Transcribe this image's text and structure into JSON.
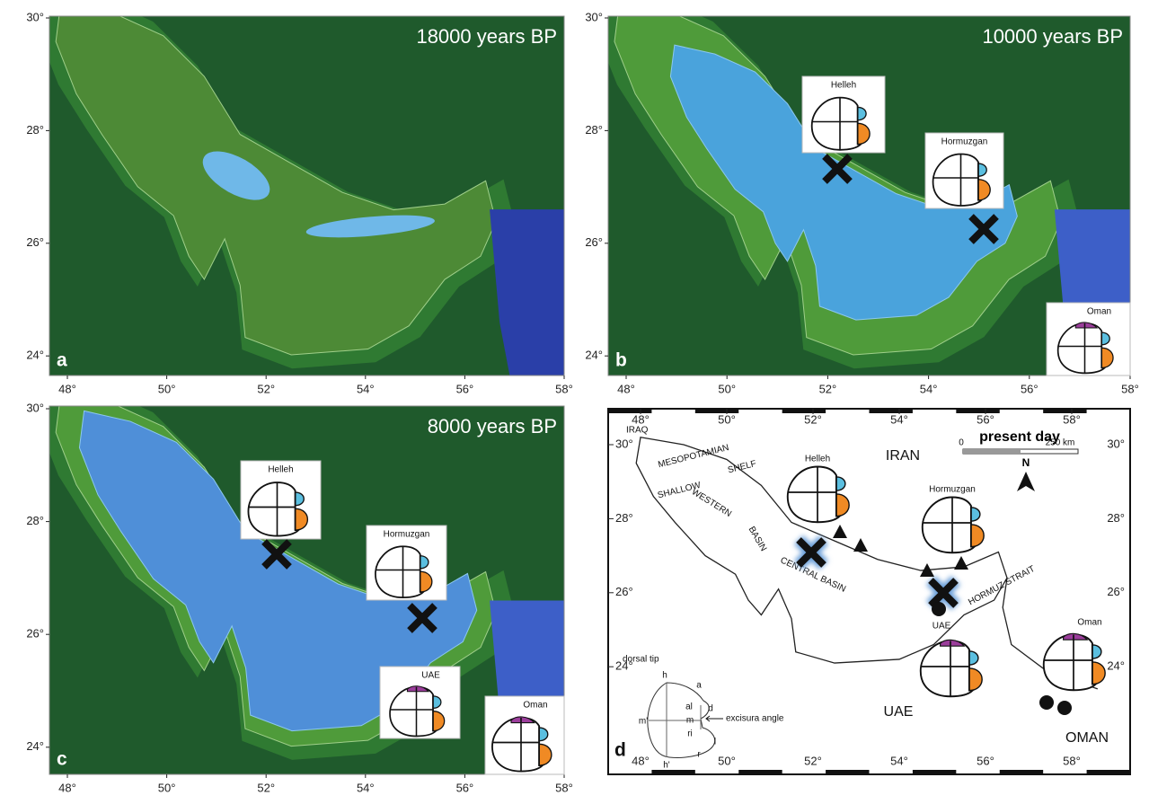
{
  "lat_ticks": [
    {
      "value": 30,
      "label": "30°"
    },
    {
      "value": 28,
      "label": "28°"
    },
    {
      "value": 26,
      "label": "26°"
    },
    {
      "value": 24,
      "label": "24°"
    }
  ],
  "lon_ticks": [
    {
      "value": 48,
      "label": "48°"
    },
    {
      "value": 50,
      "label": "50°"
    },
    {
      "value": 52,
      "label": "52°"
    },
    {
      "value": 54,
      "label": "54°"
    },
    {
      "value": 56,
      "label": "56°"
    },
    {
      "value": 58,
      "label": "58°"
    }
  ],
  "panels": [
    {
      "letter": "a",
      "period": "18000 years BP",
      "sites": []
    },
    {
      "letter": "b",
      "period": "10000 years BP",
      "sites": [
        "Helleh",
        "Hormuzgan",
        "Oman"
      ]
    },
    {
      "letter": "c",
      "period": "8000 years BP",
      "sites": [
        "Helleh",
        "Hormuzgan",
        "UAE",
        "Oman"
      ]
    }
  ],
  "present_map": {
    "letter": "d",
    "title": "present day",
    "scale_start": "0",
    "scale_end": "250 km",
    "north": "N",
    "places": [
      "IRAQ",
      "MESOPOTAMIAN",
      "SHALLOW",
      "SHELF",
      "WESTERN",
      "BASIN",
      "CENTRAL BASIN",
      "HORMUZ STRAIT"
    ],
    "countries": [
      "IRAN",
      "UAE",
      "OMAN"
    ],
    "sites": [
      "Helleh",
      "Hormuzgan",
      "UAE",
      "Oman"
    ],
    "otolith_labels": [
      "dorsal tip",
      "h",
      "a",
      "al",
      "d",
      "m",
      "m'",
      "ri",
      "l",
      "h'",
      "r",
      "excisura angle"
    ]
  }
}
